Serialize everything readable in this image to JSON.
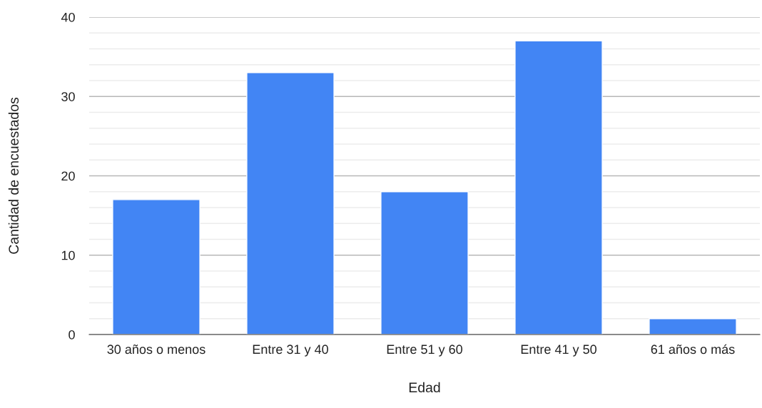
{
  "chart_data": {
    "type": "bar",
    "xlabel": "Edad",
    "ylabel": "Cantidad de encuestados",
    "categories": [
      "30 años o menos",
      "Entre 31 y 40",
      "Entre 51 y 60",
      "Entre 41 y 50",
      "61 años o más"
    ],
    "values": [
      17,
      33,
      18,
      37,
      2
    ],
    "color": "#4285f4",
    "ylim": [
      0,
      40
    ],
    "yticks": [
      0,
      {
        "value": 2,
        "label": null
      },
      {
        "value": 4,
        "label": null
      },
      {
        "value": 6,
        "label": null
      },
      {
        "value": 8,
        "label": null
      },
      10,
      {
        "value": 12,
        "label": null
      },
      {
        "value": 14,
        "label": null
      },
      {
        "value": 16,
        "label": null
      },
      {
        "value": 18,
        "label": null
      },
      20,
      {
        "value": 22,
        "label": null
      },
      {
        "value": 24,
        "label": null
      },
      {
        "value": 26,
        "label": null
      },
      {
        "value": 28,
        "label": null
      },
      30,
      {
        "value": 32,
        "label": null
      },
      {
        "value": 34,
        "label": null
      },
      {
        "value": 36,
        "label": null
      },
      {
        "value": 38,
        "label": null
      },
      40
    ],
    "grid": "y"
  }
}
